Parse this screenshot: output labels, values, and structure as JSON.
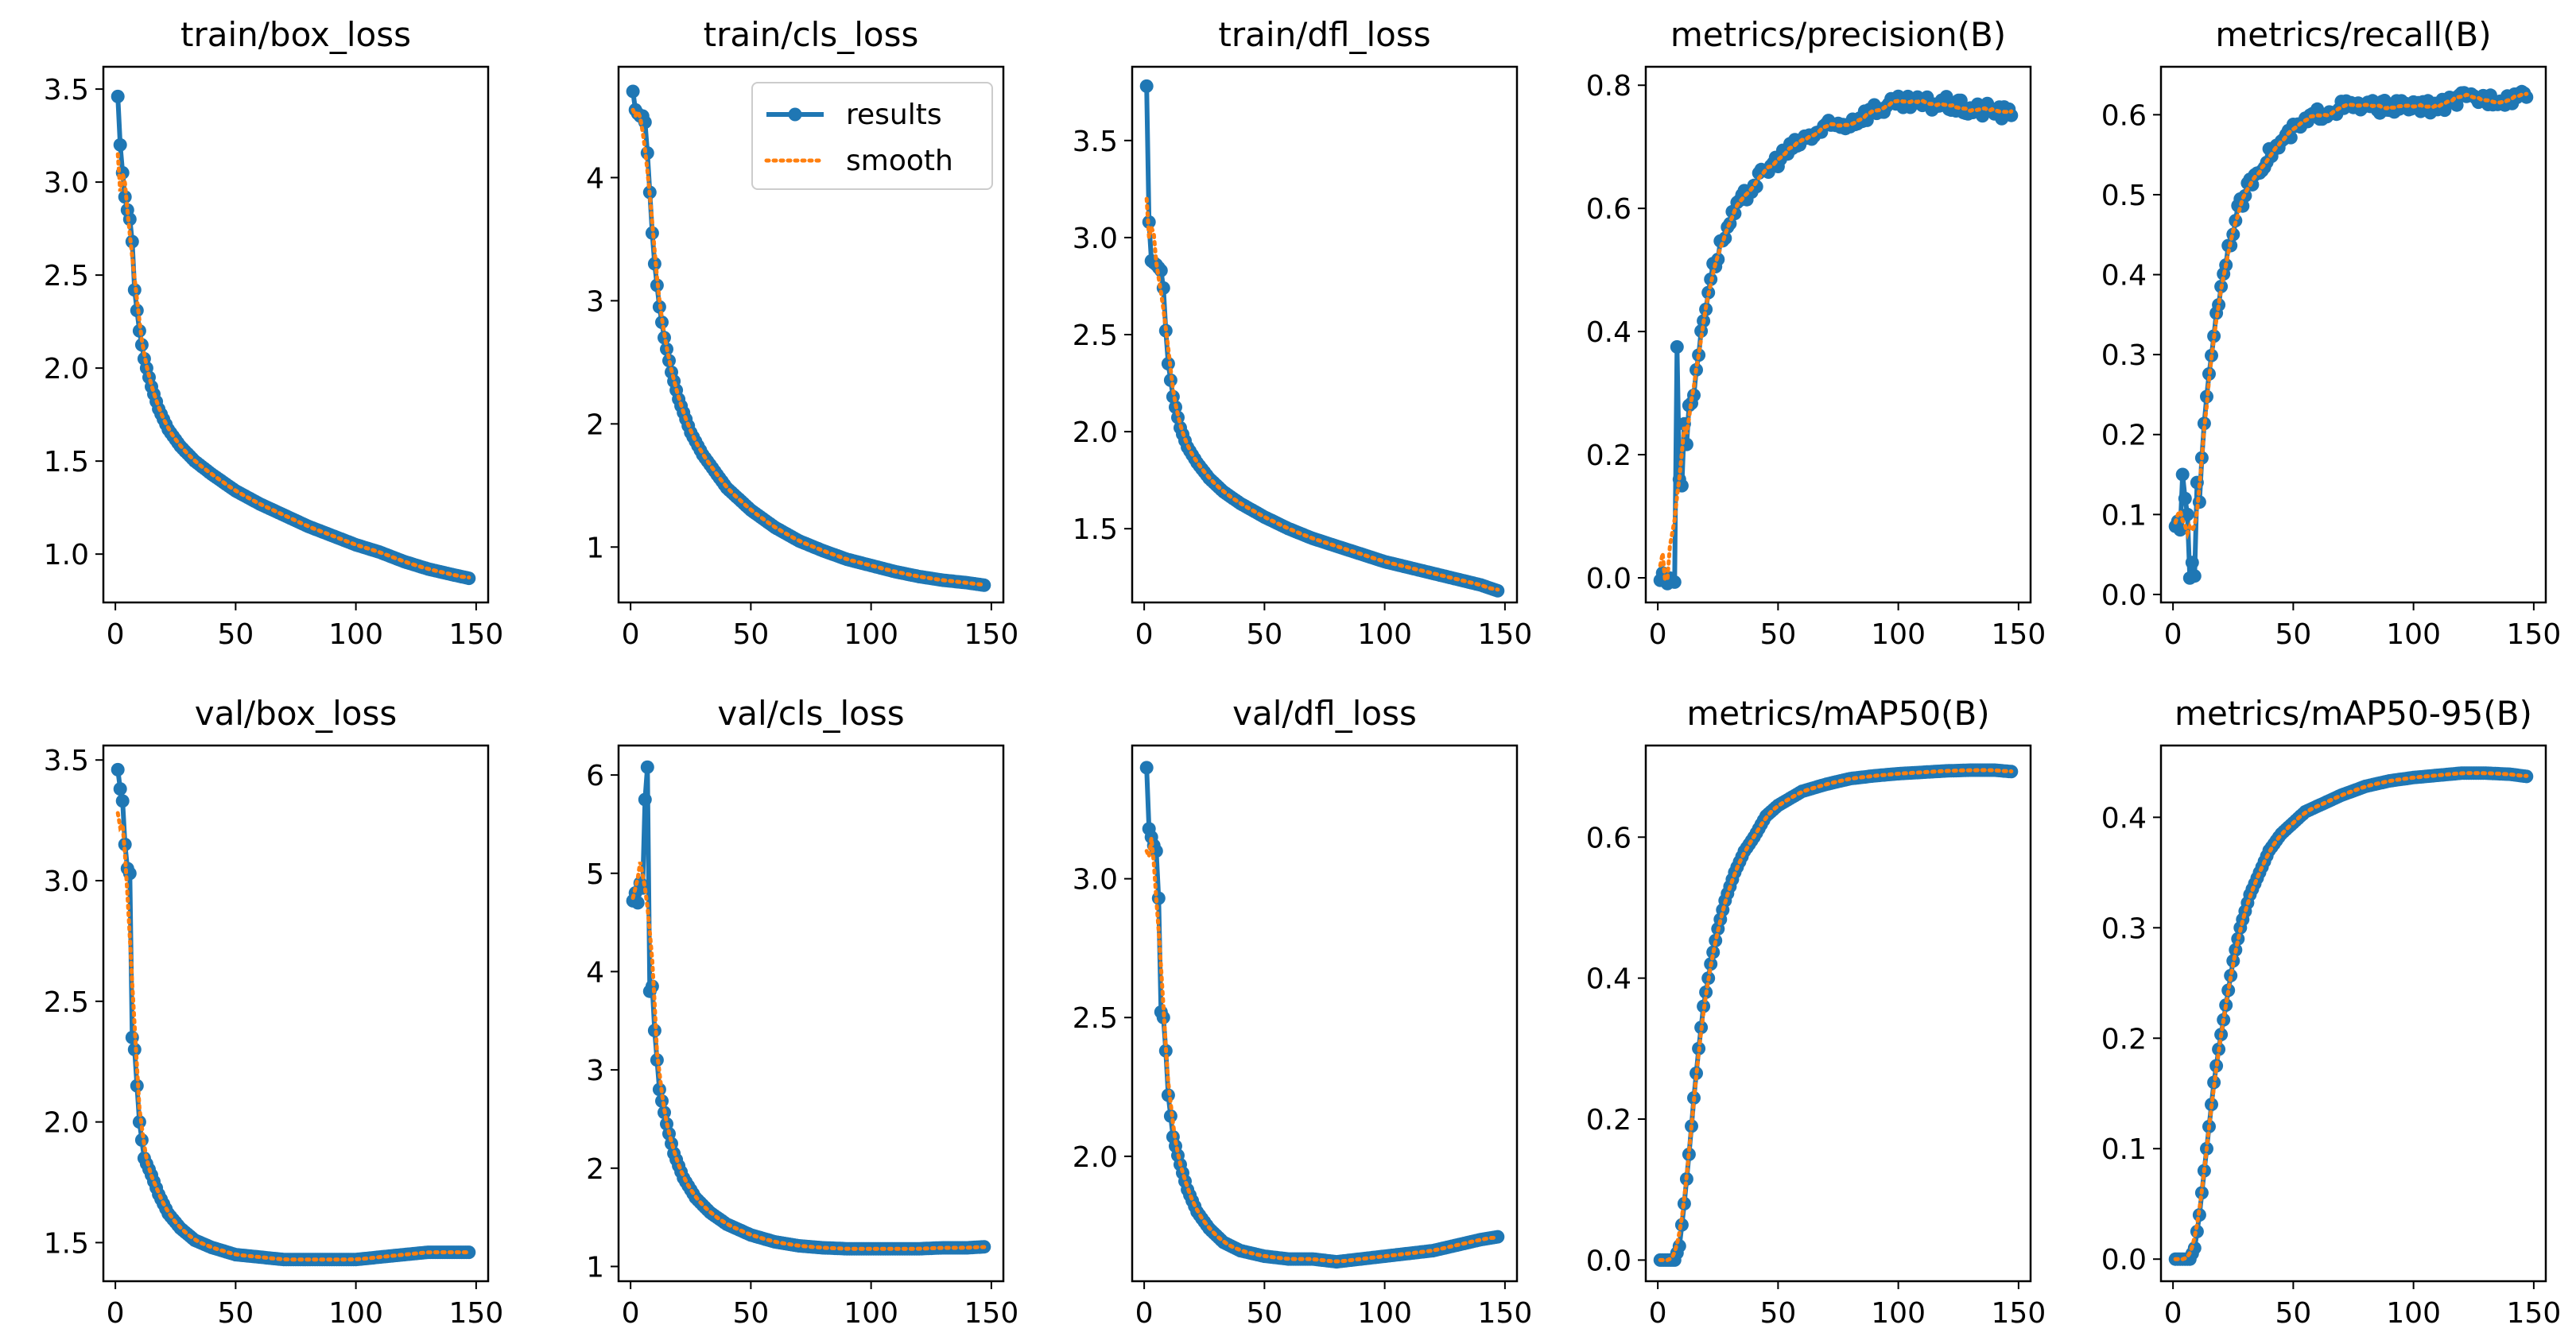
{
  "colors": {
    "results": "#1f77b4",
    "smooth": "#ff7f0e",
    "axes": "#000000",
    "background": "#ffffff"
  },
  "legend": {
    "entries": [
      "results",
      "smooth"
    ],
    "placement": "top-right",
    "panel_index": 1
  },
  "chart_data": [
    {
      "type": "line",
      "title": "train/box_loss",
      "xlim": [
        -5,
        155
      ],
      "ylim": [
        0.74,
        3.62
      ],
      "xticks": [
        0,
        50,
        100,
        150
      ],
      "yticks": [
        1.0,
        1.5,
        2.0,
        2.5,
        3.0,
        3.5
      ],
      "ytick_decimals": 1,
      "key_x": [
        1,
        2,
        3,
        4,
        5,
        6,
        7,
        8,
        10,
        12,
        15,
        18,
        22,
        27,
        33,
        40,
        50,
        60,
        70,
        80,
        90,
        100,
        110,
        120,
        130,
        140,
        147
      ],
      "key_y": [
        3.46,
        3.2,
        3.05,
        2.92,
        2.85,
        2.8,
        2.68,
        2.42,
        2.2,
        2.05,
        1.9,
        1.78,
        1.67,
        1.58,
        1.5,
        1.43,
        1.34,
        1.27,
        1.21,
        1.15,
        1.1,
        1.05,
        1.01,
        0.96,
        0.92,
        0.89,
        0.87
      ],
      "noise": 0,
      "outliers": [],
      "glitches": [],
      "smooth_start": [
        3.15,
        2.95
      ]
    },
    {
      "type": "line",
      "title": "train/cls_loss",
      "xlim": [
        -5,
        155
      ],
      "ylim": [
        0.55,
        4.9
      ],
      "xticks": [
        0,
        50,
        100,
        150
      ],
      "yticks": [
        1,
        2,
        3,
        4
      ],
      "ytick_decimals": 0,
      "key_x": [
        1,
        2,
        3,
        4,
        5,
        6,
        7,
        8,
        9,
        10,
        12,
        14,
        17,
        20,
        25,
        30,
        40,
        50,
        60,
        70,
        80,
        90,
        100,
        110,
        120,
        130,
        140,
        147
      ],
      "key_y": [
        4.7,
        4.55,
        4.52,
        4.5,
        4.5,
        4.45,
        4.2,
        3.88,
        3.55,
        3.3,
        2.95,
        2.7,
        2.42,
        2.2,
        1.93,
        1.75,
        1.48,
        1.3,
        1.16,
        1.05,
        0.97,
        0.9,
        0.85,
        0.8,
        0.76,
        0.73,
        0.71,
        0.69
      ],
      "noise": 0,
      "outliers": [],
      "glitches": [],
      "smooth_start": [
        4.55,
        4.5
      ]
    },
    {
      "type": "line",
      "title": "train/dfl_loss",
      "xlim": [
        -5,
        155
      ],
      "ylim": [
        1.12,
        3.88
      ],
      "xticks": [
        0,
        50,
        100,
        150
      ],
      "yticks": [
        1.5,
        2.0,
        2.5,
        3.0,
        3.5
      ],
      "ytick_decimals": 1,
      "key_x": [
        1,
        2,
        3,
        5,
        7,
        8,
        9,
        10,
        12,
        15,
        18,
        22,
        27,
        33,
        40,
        50,
        60,
        70,
        80,
        90,
        100,
        110,
        120,
        130,
        140,
        147
      ],
      "key_y": [
        3.78,
        3.08,
        2.88,
        2.86,
        2.83,
        2.74,
        2.52,
        2.35,
        2.18,
        2.02,
        1.92,
        1.84,
        1.76,
        1.69,
        1.63,
        1.56,
        1.5,
        1.45,
        1.41,
        1.37,
        1.33,
        1.3,
        1.27,
        1.24,
        1.21,
        1.18
      ],
      "noise": 0,
      "outliers": [],
      "glitches": [],
      "smooth_start": [
        3.2,
        3.0
      ]
    },
    {
      "type": "line",
      "title": "metrics/precision(B)",
      "xlim": [
        -5,
        155
      ],
      "ylim": [
        -0.04,
        0.83
      ],
      "xticks": [
        0,
        50,
        100,
        150
      ],
      "yticks": [
        0.0,
        0.2,
        0.4,
        0.6,
        0.8
      ],
      "ytick_decimals": 1,
      "key_x": [
        1,
        5,
        6,
        7,
        8,
        9,
        10,
        12,
        15,
        18,
        22,
        27,
        33,
        40,
        50,
        60,
        70,
        80,
        90,
        100,
        110,
        120,
        130,
        140,
        147
      ],
      "key_y": [
        0.0,
        0.0,
        0.0,
        0.0,
        0.0,
        0.0,
        0.16,
        0.22,
        0.3,
        0.4,
        0.49,
        0.55,
        0.6,
        0.64,
        0.68,
        0.71,
        0.73,
        0.74,
        0.76,
        0.77,
        0.77,
        0.77,
        0.76,
        0.76,
        0.75
      ],
      "noise": 0.012,
      "outliers": [
        [
          8,
          0.375
        ],
        [
          9,
          0.16
        ],
        [
          11,
          0.25
        ],
        [
          13,
          0.28
        ]
      ],
      "glitches": [],
      "smooth_start": [
        0.02,
        0.04
      ]
    },
    {
      "type": "line",
      "title": "metrics/recall(B)",
      "xlim": [
        -5,
        155
      ],
      "ylim": [
        -0.01,
        0.66
      ],
      "xticks": [
        0,
        50,
        100,
        150
      ],
      "yticks": [
        0.0,
        0.1,
        0.2,
        0.3,
        0.4,
        0.5,
        0.6
      ],
      "ytick_decimals": 1,
      "key_x": [
        1,
        3,
        5,
        7,
        9,
        11,
        13,
        15,
        18,
        22,
        27,
        33,
        40,
        50,
        60,
        70,
        80,
        90,
        100,
        110,
        120,
        130,
        140,
        147
      ],
      "key_y": [
        0.09,
        0.08,
        0.1,
        0.02,
        0.03,
        0.12,
        0.21,
        0.28,
        0.35,
        0.42,
        0.48,
        0.52,
        0.55,
        0.58,
        0.6,
        0.61,
        0.61,
        0.61,
        0.61,
        0.61,
        0.62,
        0.62,
        0.62,
        0.63
      ],
      "noise": 0.008,
      "outliers": [
        [
          4,
          0.15
        ],
        [
          5,
          0.12
        ],
        [
          6,
          0.1
        ],
        [
          8,
          0.04
        ],
        [
          10,
          0.14
        ]
      ],
      "glitches": [],
      "smooth_start": [
        0.09,
        0.1
      ]
    },
    {
      "type": "line",
      "title": "val/box_loss",
      "xlim": [
        -5,
        155
      ],
      "ylim": [
        1.34,
        3.56
      ],
      "xticks": [
        0,
        50,
        100,
        150
      ],
      "yticks": [
        1.5,
        2.0,
        2.5,
        3.0,
        3.5
      ],
      "ytick_decimals": 1,
      "key_x": [
        1,
        2,
        3,
        4,
        5,
        6,
        7,
        8,
        9,
        10,
        12,
        15,
        18,
        22,
        27,
        33,
        40,
        50,
        60,
        70,
        80,
        90,
        100,
        110,
        120,
        130,
        140,
        147
      ],
      "key_y": [
        3.46,
        3.38,
        3.33,
        3.15,
        3.05,
        3.0,
        2.35,
        2.3,
        2.15,
        2.0,
        1.85,
        1.78,
        1.7,
        1.62,
        1.56,
        1.51,
        1.48,
        1.45,
        1.44,
        1.43,
        1.43,
        1.43,
        1.43,
        1.44,
        1.45,
        1.46,
        1.46,
        1.46
      ],
      "noise": 0,
      "outliers": [
        [
          6,
          3.03
        ]
      ],
      "glitches": [],
      "smooth_start": [
        3.28,
        3.22
      ]
    },
    {
      "type": "line",
      "title": "val/cls_loss",
      "xlim": [
        -5,
        155
      ],
      "ylim": [
        0.85,
        6.3
      ],
      "xticks": [
        0,
        50,
        100,
        150
      ],
      "yticks": [
        1,
        2,
        3,
        4,
        5,
        6
      ],
      "ytick_decimals": 0,
      "key_x": [
        1,
        2,
        3,
        4,
        5,
        6,
        7,
        8,
        9,
        10,
        12,
        15,
        18,
        22,
        27,
        33,
        40,
        50,
        60,
        70,
        80,
        90,
        100,
        110,
        120,
        130,
        140,
        147
      ],
      "key_y": [
        4.72,
        4.8,
        4.85,
        4.9,
        4.95,
        5.75,
        6.08,
        3.8,
        3.85,
        3.4,
        2.8,
        2.45,
        2.15,
        1.9,
        1.7,
        1.55,
        1.43,
        1.32,
        1.25,
        1.21,
        1.19,
        1.18,
        1.18,
        1.18,
        1.18,
        1.19,
        1.19,
        1.2
      ],
      "noise": 0,
      "outliers": [
        [
          3,
          4.7
        ],
        [
          5,
          4.85
        ]
      ],
      "glitches": [],
      "smooth_start": [
        4.75,
        4.85
      ]
    },
    {
      "type": "line",
      "title": "val/dfl_loss",
      "xlim": [
        -5,
        155
      ],
      "ylim": [
        1.55,
        3.48
      ],
      "xticks": [
        0,
        50,
        100,
        150
      ],
      "yticks": [
        2.0,
        2.5,
        3.0
      ],
      "ytick_decimals": 1,
      "key_x": [
        1,
        2,
        3,
        4,
        5,
        6,
        7,
        8,
        9,
        10,
        12,
        15,
        18,
        22,
        27,
        33,
        40,
        50,
        60,
        70,
        80,
        90,
        100,
        110,
        120,
        130,
        140,
        147
      ],
      "key_y": [
        3.4,
        3.18,
        3.15,
        3.12,
        3.1,
        2.93,
        2.52,
        2.5,
        2.38,
        2.22,
        2.07,
        1.97,
        1.88,
        1.8,
        1.74,
        1.69,
        1.66,
        1.64,
        1.63,
        1.63,
        1.62,
        1.63,
        1.64,
        1.65,
        1.66,
        1.68,
        1.7,
        1.71
      ],
      "noise": 0,
      "outliers": [],
      "glitches": [],
      "smooth_start": [
        3.1,
        3.08
      ]
    },
    {
      "type": "line",
      "title": "metrics/mAP50(B)",
      "xlim": [
        -5,
        155
      ],
      "ylim": [
        -0.03,
        0.73
      ],
      "xticks": [
        0,
        50,
        100,
        150
      ],
      "yticks": [
        0.0,
        0.2,
        0.4,
        0.6
      ],
      "ytick_decimals": 1,
      "key_x": [
        1,
        5,
        7,
        9,
        11,
        13,
        15,
        17,
        19,
        22,
        25,
        28,
        32,
        36,
        40,
        45,
        50,
        55,
        60,
        70,
        80,
        90,
        100,
        110,
        120,
        130,
        140,
        147
      ],
      "key_y": [
        0.0,
        0.0,
        0.0,
        0.02,
        0.08,
        0.15,
        0.23,
        0.3,
        0.36,
        0.42,
        0.47,
        0.51,
        0.55,
        0.58,
        0.6,
        0.63,
        0.645,
        0.655,
        0.665,
        0.675,
        0.683,
        0.687,
        0.69,
        0.692,
        0.694,
        0.695,
        0.695,
        0.693
      ],
      "noise": 0,
      "outliers": [],
      "glitches": [],
      "smooth_start": [
        0.0,
        0.0
      ]
    },
    {
      "type": "line",
      "title": "metrics/mAP50-95(B)",
      "xlim": [
        -5,
        155
      ],
      "ylim": [
        -0.02,
        0.465
      ],
      "xticks": [
        0,
        50,
        100,
        150
      ],
      "yticks": [
        0.0,
        0.1,
        0.2,
        0.3,
        0.4
      ],
      "ytick_decimals": 1,
      "key_x": [
        1,
        5,
        7,
        9,
        11,
        13,
        15,
        17,
        19,
        22,
        25,
        28,
        32,
        36,
        40,
        45,
        50,
        55,
        60,
        70,
        80,
        90,
        100,
        110,
        120,
        130,
        140,
        147
      ],
      "key_y": [
        0.0,
        0.0,
        0.0,
        0.01,
        0.04,
        0.08,
        0.12,
        0.16,
        0.19,
        0.23,
        0.27,
        0.3,
        0.33,
        0.35,
        0.37,
        0.385,
        0.395,
        0.405,
        0.41,
        0.42,
        0.428,
        0.433,
        0.436,
        0.438,
        0.44,
        0.44,
        0.439,
        0.437
      ],
      "noise": 0,
      "outliers": [],
      "glitches": [],
      "smooth_start": [
        0.0,
        0.0
      ]
    }
  ]
}
